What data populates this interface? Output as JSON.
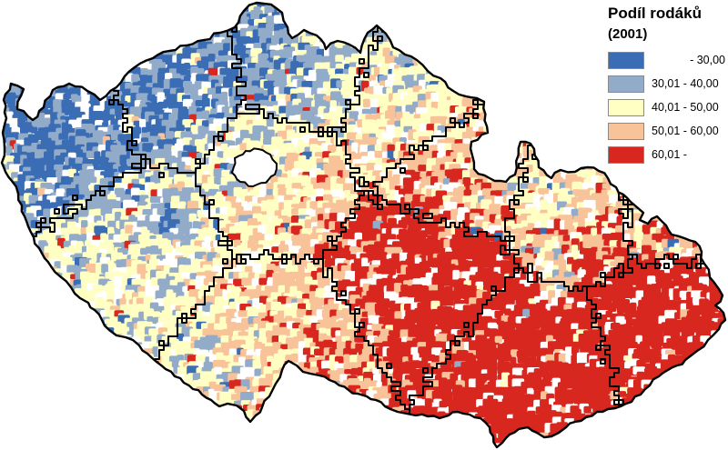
{
  "figure": {
    "kind": "choropleth-map",
    "subject": "Czech Republic municipalities"
  },
  "legend": {
    "title": "Podíl rodáků",
    "subtitle": "(2001)",
    "classes": [
      {
        "label": "- 30,00",
        "color": "#3b6db5"
      },
      {
        "label": "30,01 - 40,00",
        "color": "#92abc9"
      },
      {
        "label": "40,01 - 50,00",
        "color": "#ffffc4"
      },
      {
        "label": "50,01 - 60,00",
        "color": "#f8c399"
      },
      {
        "label": "60,01 -",
        "color": "#d7271f"
      }
    ]
  },
  "map": {
    "background_color": "#ffffff",
    "no_data_color": "#ffffff",
    "border_color": "#000000",
    "palette": [
      "#3b6db5",
      "#92abc9",
      "#ffffc4",
      "#f8c399",
      "#d7271f"
    ]
  }
}
